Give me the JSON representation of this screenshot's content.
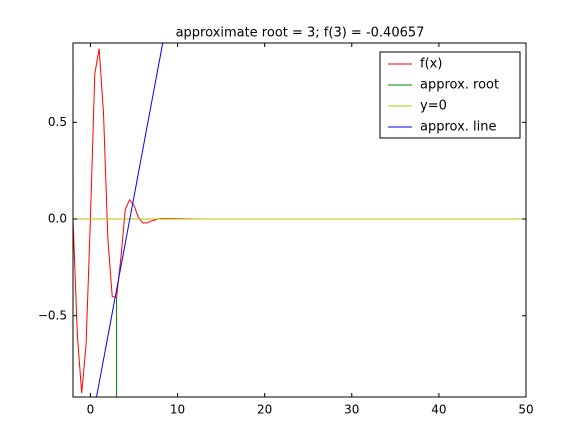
{
  "chart_data": {
    "type": "line",
    "title": "approximate root = 3; f(3) = -0.40657",
    "xlim": [
      -2,
      50
    ],
    "ylim": [
      -0.92,
      0.91
    ],
    "xticks": [
      0,
      10,
      20,
      30,
      40,
      50
    ],
    "yticks": [
      {
        "value": -0.5,
        "label": "−0.5"
      },
      {
        "value": 0,
        "label": "0.0"
      },
      0.5
    ],
    "legend": "upper right",
    "series": [
      {
        "name": "f(x)",
        "color": "#ff0000",
        "x": [
          -2,
          -1.5,
          -1,
          -0.5,
          0,
          0.5,
          1,
          1.5,
          2,
          2.5,
          3,
          3.5,
          4,
          4.5,
          5,
          5.5,
          6,
          6.5,
          7,
          8,
          9,
          10,
          12.5
        ],
        "values": [
          0,
          -0.6,
          -0.9,
          -0.65,
          0.0,
          0.75,
          0.88,
          0.55,
          -0.1,
          -0.4,
          -0.40657,
          -0.2,
          0.05,
          0.1,
          0.07,
          0.01,
          -0.02,
          -0.02,
          -0.01,
          0.003,
          0.003,
          0.002,
          0
        ]
      },
      {
        "name": "approx. root",
        "color": "#008000",
        "x": [
          3,
          3
        ],
        "values": [
          -0.92,
          -0.40657
        ]
      },
      {
        "name": "y=0",
        "color": "#bfbf00",
        "x": [
          -2,
          50
        ],
        "values": [
          0,
          0
        ]
      },
      {
        "name": "approx. line",
        "color": "#0000ff",
        "x": [
          0.7,
          8.3
        ],
        "values": [
          -0.92,
          0.91
        ]
      }
    ]
  }
}
